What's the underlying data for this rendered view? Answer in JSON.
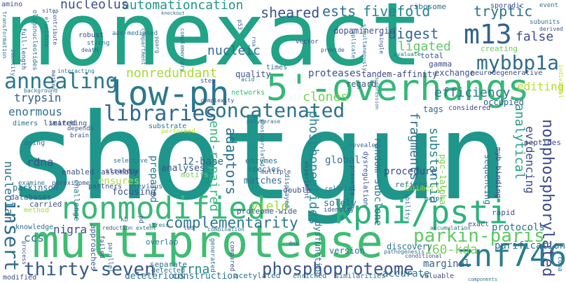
{
  "word_cloud": {
    "words": [
      {
        "text": "shotgun",
        "color": "#1f968b"
      },
      {
        "text": "nonexact",
        "color": "#20a386"
      },
      {
        "text": "multiprotease",
        "color": "#3fbc73"
      },
      {
        "text": "5'-overhangs",
        "color": "#35b779"
      },
      {
        "text": "low-ph",
        "color": "#2a788e"
      },
      {
        "text": "nonmodified",
        "color": "#38b977"
      },
      {
        "text": "kpni/psti",
        "color": "#2db27d"
      },
      {
        "text": "znf746",
        "color": "#287d8e"
      },
      {
        "text": "concatenated",
        "color": "#2c728e"
      },
      {
        "text": "m13",
        "color": "#34618d"
      },
      {
        "text": "annealing",
        "color": "#2a788e"
      },
      {
        "text": "libraries",
        "color": "#31688e"
      },
      {
        "text": "insert",
        "color": "#2f6c8e"
      },
      {
        "text": "thirty-seven",
        "color": "#38588c"
      },
      {
        "text": "parkin-paris",
        "color": "#5ec962"
      },
      {
        "text": "mybbp1a",
        "color": "#2f6b8e"
      },
      {
        "text": "phosphoproteome",
        "color": "#3b528b"
      },
      {
        "text": "nonphosphorylated",
        "color": "#3e4a89"
      },
      {
        "text": "complementarity",
        "color": "#2a768e"
      },
      {
        "text": "nonredundant",
        "color": "#a5db36"
      },
      {
        "text": "automationcation",
        "color": "#1f958b"
      },
      {
        "text": "nucleolus",
        "color": "#3e4c8a"
      },
      {
        "text": "sheared",
        "color": "#3b528b"
      },
      {
        "text": "ests",
        "color": "#2e6e8e"
      },
      {
        "text": "fivefold",
        "color": "#26828e"
      },
      {
        "text": "tryptic",
        "color": "#2c728e"
      },
      {
        "text": "digest",
        "color": "#31678e"
      },
      {
        "text": "ligated",
        "color": "#5ec962"
      },
      {
        "text": "false",
        "color": "#3d4d8a"
      },
      {
        "text": "editing",
        "color": "#b5de2b"
      },
      {
        "text": "nucleic",
        "color": "#31688e"
      },
      {
        "text": "trypsin",
        "color": "#375b8d"
      },
      {
        "text": "enormous",
        "color": "#2e6e8e"
      },
      {
        "text": "clones",
        "color": "#75d054"
      },
      {
        "text": "efficiency",
        "color": "#2c738e"
      },
      {
        "text": "adaptors",
        "color": "#2c718e"
      },
      {
        "text": "end-repaired",
        "color": "#35b779"
      },
      {
        "text": "phosphopeptides",
        "color": "#25858e"
      },
      {
        "text": "fragments",
        "color": "#2c718e"
      },
      {
        "text": "substantia",
        "color": "#27808e"
      },
      {
        "text": "analytical",
        "color": "#1fa187"
      },
      {
        "text": "evidencing",
        "color": "#3f4788"
      },
      {
        "text": "nucleolar",
        "color": "#2c718e"
      },
      {
        "text": "rdna",
        "color": "#3b528b"
      },
      {
        "text": "nigra",
        "color": "#3e4a89"
      },
      {
        "text": "ccs",
        "color": "#2e6f8e"
      },
      {
        "text": "rrna",
        "color": "#24878e"
      },
      {
        "text": "yield",
        "color": "#9bd93c"
      },
      {
        "text": "160-kda",
        "color": "#75d054"
      },
      {
        "text": "purification",
        "color": "#2e6e8e"
      },
      {
        "text": "marginal",
        "color": "#355f8d"
      },
      {
        "text": "accurate",
        "color": "#287c8e"
      },
      {
        "text": "proteases",
        "color": "#3b528b"
      },
      {
        "text": "random-subclone",
        "color": "#2a788e"
      },
      {
        "text": "procedure",
        "color": "#3e4a89"
      },
      {
        "text": "protocols",
        "color": "#2c728e"
      },
      {
        "text": "dopaminergic",
        "color": "#3e4c8a"
      },
      {
        "text": "tandem-affinity",
        "color": "#3f4889"
      },
      {
        "text": "12-base",
        "color": "#355e8d"
      },
      {
        "text": "ensures",
        "color": "#b5de2b"
      },
      {
        "text": "prepared",
        "color": "#2a788e"
      },
      {
        "text": "analyses",
        "color": "#39568c"
      },
      {
        "text": "focusing",
        "color": "#3b528b"
      },
      {
        "text": "global",
        "color": "#2e6e8e"
      },
      {
        "text": "matches",
        "color": "#2e6f8e"
      },
      {
        "text": "solely",
        "color": "#2e6f8e"
      },
      {
        "text": "quality",
        "color": "#3b528b"
      },
      {
        "text": "regard",
        "color": "#38598c"
      },
      {
        "text": "occupied",
        "color": "#34608d"
      },
      {
        "text": "exchange",
        "color": "#3b528b"
      },
      {
        "text": "gamma",
        "color": "#3f4788"
      },
      {
        "text": "total",
        "color": "#3a548c"
      },
      {
        "text": "creating",
        "color": "#6ccd5a"
      },
      {
        "text": "pgc-1alpha",
        "color": "#7ad151"
      },
      {
        "text": "tags",
        "color": "#31678e"
      },
      {
        "text": "sequencing",
        "color": "#2a778e"
      },
      {
        "text": "myb-binding",
        "color": "#3e4989"
      },
      {
        "text": "chimeric",
        "color": "#a0da39"
      },
      {
        "text": "rapid",
        "color": "#3b528b"
      },
      {
        "text": "peptides",
        "color": "#3f4788"
      },
      {
        "text": "considered",
        "color": "#3f4788"
      },
      {
        "text": "version",
        "color": "#2d708e"
      },
      {
        "text": "discovery",
        "color": "#2c728e"
      },
      {
        "text": "dysfunction",
        "color": "#2d708e"
      },
      {
        "text": "parkinson",
        "color": "#2c718e"
      },
      {
        "text": "enabled",
        "color": "#3b528b"
      },
      {
        "text": "challenge",
        "color": "#2a778e"
      },
      {
        "text": "approaches",
        "color": "#38598c"
      },
      {
        "text": "overlap",
        "color": "#2a778e"
      },
      {
        "text": "separate",
        "color": "#2c728e"
      },
      {
        "text": "deleterious",
        "color": "#2c718e"
      },
      {
        "text": "construction",
        "color": "#2c718e"
      },
      {
        "text": "detected",
        "color": "#2e6f8e"
      },
      {
        "text": "acetylated",
        "color": "#2c718e"
      },
      {
        "text": "enriched",
        "color": "#2c718e"
      },
      {
        "text": "similarities",
        "color": "#2c718e"
      },
      {
        "text": "valuable",
        "color": "#3e4a89"
      },
      {
        "text": "databases",
        "color": "#3b528b"
      },
      {
        "text": "carried",
        "color": "#3b528b"
      },
      {
        "text": "method",
        "color": "#a5db36"
      },
      {
        "text": "knowledge",
        "color": "#2e6f8e"
      },
      {
        "text": "modified",
        "color": "#3e4a89"
      },
      {
        "text": "proteome-wide",
        "color": "#3b528b"
      },
      {
        "text": "partners",
        "color": "#3b528b"
      },
      {
        "text": "strategy",
        "color": "#3b528b"
      },
      {
        "text": "previous",
        "color": "#2c718e"
      },
      {
        "text": "assembly",
        "color": "#3f4788"
      },
      {
        "text": "selective",
        "color": "#2c718e"
      },
      {
        "text": "motifs",
        "color": "#7ad151"
      },
      {
        "text": "substrate",
        "color": "#2e6f8e"
      },
      {
        "text": "performed",
        "color": "#b5de2b"
      },
      {
        "text": "limited",
        "color": "#3e4a89"
      },
      {
        "text": "depends",
        "color": "#3b528b"
      },
      {
        "text": "brain",
        "color": "#3e4a89"
      },
      {
        "text": "aging",
        "color": "#2c718e"
      },
      {
        "text": "examine",
        "color": "#2e6f8e"
      },
      {
        "text": "peroxisome",
        "color": "#3b528b"
      },
      {
        "text": "dimers",
        "color": "#2e6f8e"
      },
      {
        "text": "searching",
        "color": "#3b528b"
      },
      {
        "text": "background",
        "color": "#2c718e"
      },
      {
        "text": "interacting",
        "color": "#2c718e"
      },
      {
        "text": "networks",
        "color": "#35b779"
      },
      {
        "text": "complexity",
        "color": "#3e4a89"
      },
      {
        "text": "step",
        "color": "#3b528b"
      },
      {
        "text": "acid",
        "color": "#2c718e"
      },
      {
        "text": "times",
        "color": "#2e6f8e"
      },
      {
        "text": "enzymes",
        "color": "#2c718e"
      },
      {
        "text": "species",
        "color": "#2e6f8e"
      },
      {
        "text": "multiple",
        "color": "#3b528b"
      },
      {
        "text": "displayed",
        "color": "#2e6f8e"
      },
      {
        "text": "polymerase",
        "color": "#2c718e"
      },
      {
        "text": "phosphorylated",
        "color": "#2e6f8e"
      },
      {
        "text": "experiment",
        "color": "#3b528b"
      },
      {
        "text": "revealed",
        "color": "#2e6f8e"
      },
      {
        "text": "prevents",
        "color": "#3b528b"
      },
      {
        "text": "dysregulation",
        "color": "#3b528b"
      },
      {
        "text": "refined",
        "color": "#2c718e"
      },
      {
        "text": "double",
        "color": "#3e4a89"
      },
      {
        "text": "cellular",
        "color": "#2e6f8e"
      },
      {
        "text": "identify",
        "color": "#3b528b"
      },
      {
        "text": "ability",
        "color": "#2c718e"
      },
      {
        "text": "major",
        "color": "#2e6f8e"
      },
      {
        "text": "exact",
        "color": "#3b528b"
      },
      {
        "text": "accumulation",
        "color": "#2c718e"
      },
      {
        "text": "conditional",
        "color": "#3e4a89"
      },
      {
        "text": "pathogenesis",
        "color": "#2e6f8e"
      },
      {
        "text": "led",
        "color": "#3b528b"
      },
      {
        "text": "combination",
        "color": "#2c718e"
      },
      {
        "text": "dna",
        "color": "#2e6f8e"
      },
      {
        "text": "failed",
        "color": "#3b528b"
      },
      {
        "text": "parallel",
        "color": "#2e6f8e"
      },
      {
        "text": "reduction",
        "color": "#3b528b"
      },
      {
        "text": "extent",
        "color": "#2c718e"
      },
      {
        "text": "kb",
        "color": "#2e6f8e"
      },
      {
        "text": "pd",
        "color": "#3b528b"
      },
      {
        "text": "stress",
        "color": "#2c718e"
      },
      {
        "text": "generated",
        "color": "#2e6f8e"
      },
      {
        "text": "compared",
        "color": "#3b528b"
      },
      {
        "text": "components",
        "color": "#2c718e"
      },
      {
        "text": "cdna",
        "color": "#2e6f8e"
      },
      {
        "text": "process",
        "color": "#3b528b"
      },
      {
        "text": "ribosome",
        "color": "#2c718e"
      },
      {
        "text": "sporadic",
        "color": "#3e4a89"
      },
      {
        "text": "event",
        "color": "#2e6f8e"
      },
      {
        "text": "subunits",
        "color": "#2c718e"
      },
      {
        "text": "derived",
        "color": "#3b528b"
      },
      {
        "text": "knockout",
        "color": "#2e6f8e"
      },
      {
        "text": "sites",
        "color": "#3b528b"
      },
      {
        "text": "amino",
        "color": "#3e4a89"
      },
      {
        "text": "transformation",
        "color": "#2c718e"
      },
      {
        "text": "identity",
        "color": "#2e6f8e"
      },
      {
        "text": "full-length",
        "color": "#3b528b"
      },
      {
        "text": "oligonucleotides",
        "color": "#2c718e"
      },
      {
        "text": "elucidate",
        "color": "#2e6f8e"
      },
      {
        "text": "contribute",
        "color": "#3b528b"
      },
      {
        "text": "robust",
        "color": "#3e4a89"
      },
      {
        "text": "aav-mediated",
        "color": "#2c718e"
      },
      {
        "text": "strong",
        "color": "#2e6f8e"
      },
      {
        "text": "death",
        "color": "#3b528b"
      },
      {
        "text": "compartment",
        "color": "#2c718e"
      },
      {
        "text": "pparg",
        "color": "#2e6f8e"
      },
      {
        "text": "p53",
        "color": "#3b528b"
      },
      {
        "text": "complementary",
        "color": "#2c718e"
      },
      {
        "text": "rna",
        "color": "#2e6f8e"
      },
      {
        "text": "vector",
        "color": "#3e4a89"
      },
      {
        "text": "provide",
        "color": "#3b528b"
      },
      {
        "text": "replicate",
        "color": "#2c718e"
      },
      {
        "text": "simultaneously",
        "color": "#2e6f8e"
      },
      {
        "text": "single",
        "color": "#3b528b"
      },
      {
        "text": "evaluate",
        "color": "#2c718e"
      },
      {
        "text": "neurodegenerative",
        "color": "#3e4a89"
      },
      {
        "text": "individual",
        "color": "#b5de2b"
      },
      {
        "text": "suppression",
        "color": "#2e6f8e"
      },
      {
        "text": "marker",
        "color": "#3b528b"
      }
    ]
  }
}
